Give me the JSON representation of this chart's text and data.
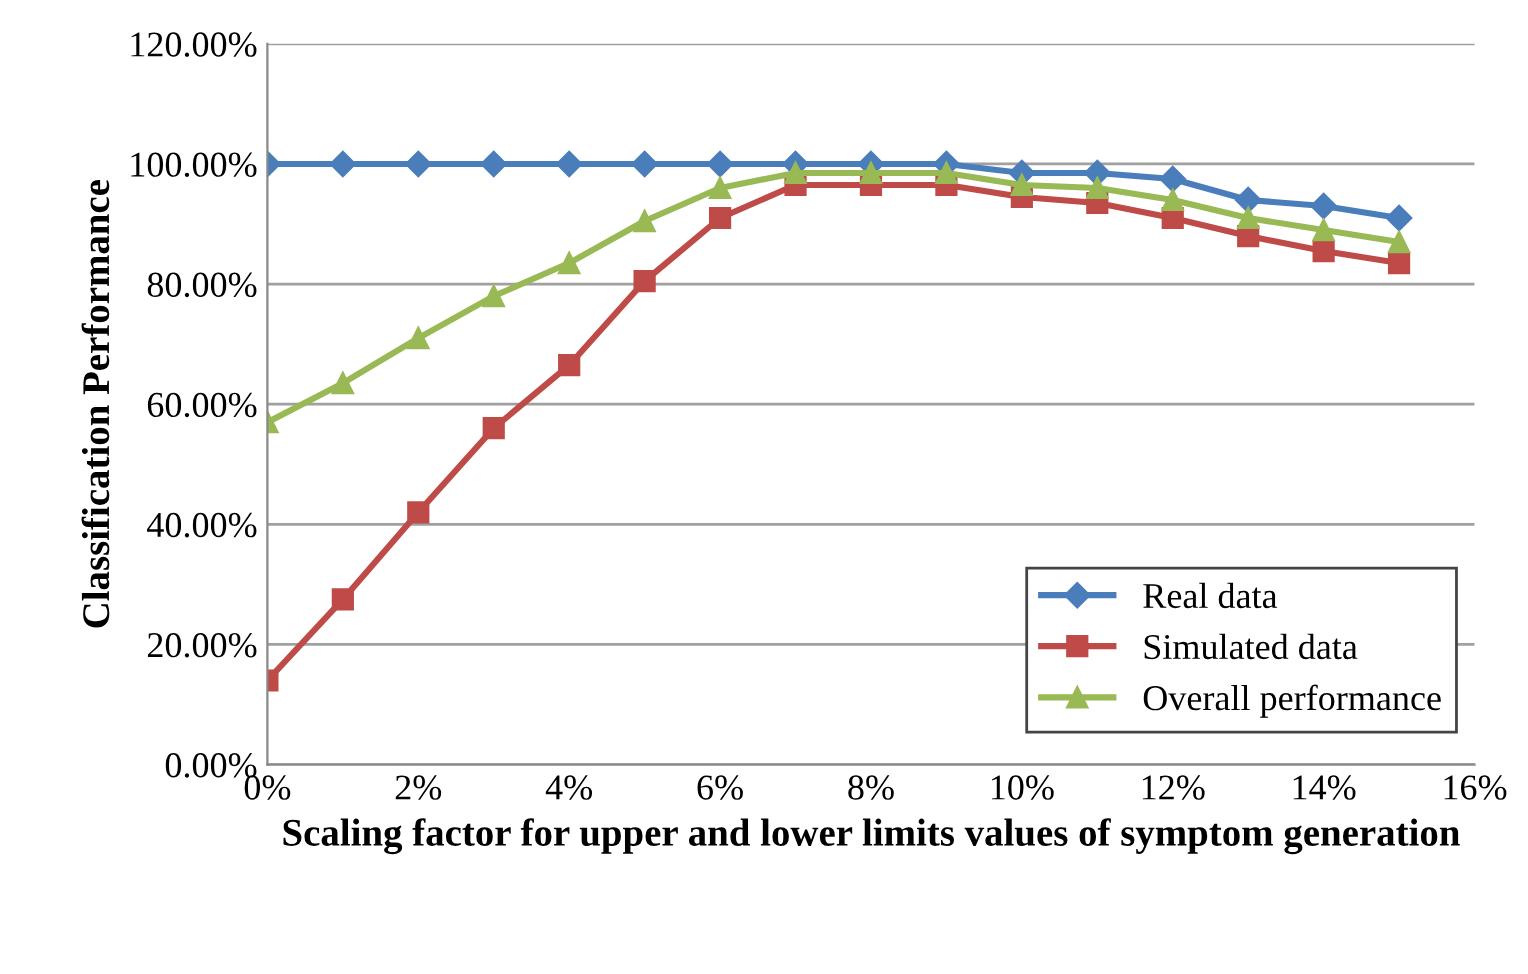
{
  "chart_data": {
    "type": "line",
    "xlabel": "Scaling factor for upper and lower limits values of symptom generation",
    "ylabel": "Classification Performance",
    "x": [
      0,
      1,
      2,
      3,
      4,
      5,
      6,
      7,
      8,
      9,
      10,
      11,
      12,
      13,
      14,
      15
    ],
    "xlim": [
      0,
      16
    ],
    "xticks": [
      {
        "value": 0,
        "label": "0%"
      },
      {
        "value": 2,
        "label": "2%"
      },
      {
        "value": 4,
        "label": "4%"
      },
      {
        "value": 6,
        "label": "6%"
      },
      {
        "value": 8,
        "label": "8%"
      },
      {
        "value": 10,
        "label": "10%"
      },
      {
        "value": 12,
        "label": "12%"
      },
      {
        "value": 14,
        "label": "14%"
      },
      {
        "value": 16,
        "label": "16%"
      }
    ],
    "ylim": [
      0,
      120
    ],
    "yticks": [
      {
        "value": 0,
        "label": "0.00%"
      },
      {
        "value": 20,
        "label": "20.00%"
      },
      {
        "value": 40,
        "label": "40.00%"
      },
      {
        "value": 60,
        "label": "60.00%"
      },
      {
        "value": 80,
        "label": "80.00%"
      },
      {
        "value": 100,
        "label": "100.00%"
      },
      {
        "value": 120,
        "label": "120.00%"
      }
    ],
    "grid": "y",
    "legend": "bottom right",
    "series": [
      {
        "name": "Real data",
        "color": "#4a7ebb",
        "marker": "diamond",
        "values": [
          100,
          100,
          100,
          100,
          100,
          100,
          100,
          100,
          100,
          100,
          98.5,
          98.5,
          97.5,
          94,
          93,
          91
        ]
      },
      {
        "name": "Simulated data",
        "color": "#be4b48",
        "marker": "square",
        "values": [
          14,
          27.5,
          42,
          56,
          66.5,
          80.5,
          91,
          96.5,
          96.5,
          96.5,
          94.5,
          93.5,
          91,
          88,
          85.5,
          83.5
        ]
      },
      {
        "name": "Overall performance",
        "color": "#98b954",
        "marker": "triangle",
        "values": [
          57,
          63.5,
          71,
          78,
          83.5,
          90.5,
          96,
          98.5,
          98.5,
          98.5,
          96.5,
          96,
          94,
          91,
          89,
          87
        ]
      }
    ]
  }
}
